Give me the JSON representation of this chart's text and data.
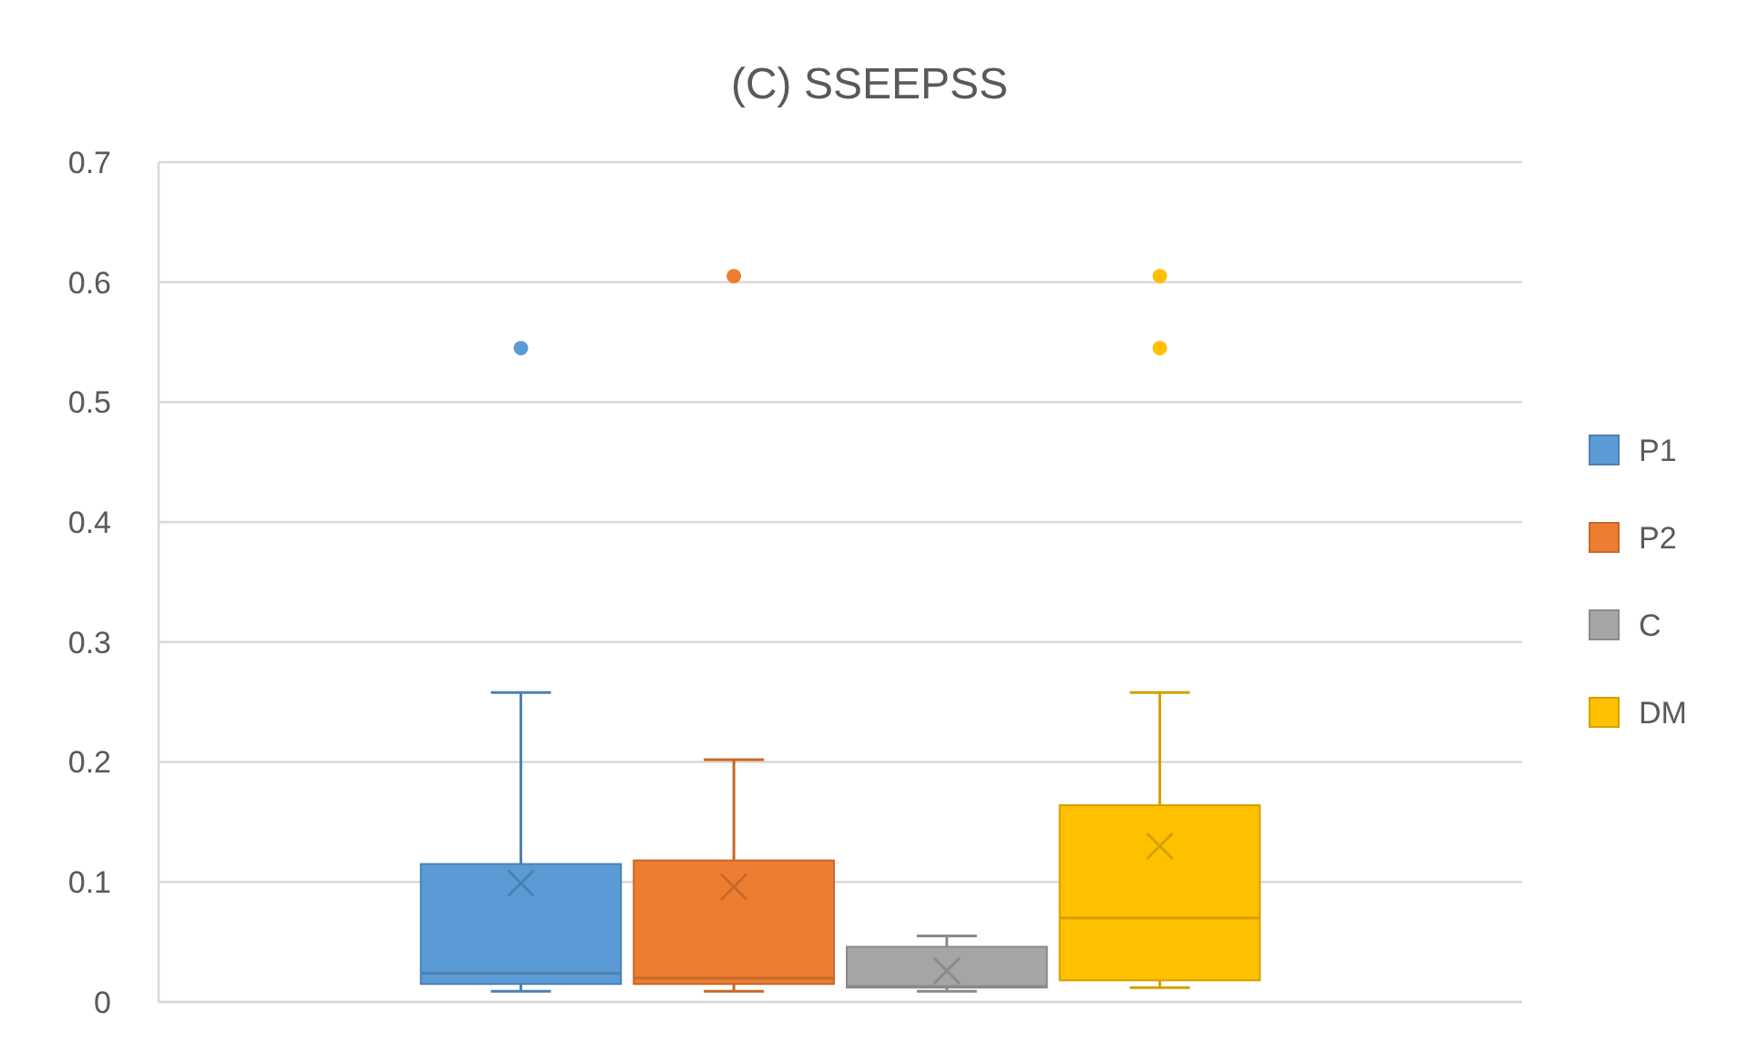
{
  "chart_data": {
    "type": "box",
    "title": "(C) SSEEPSS",
    "categories": [
      null
    ],
    "ylim": [
      0,
      0.7
    ],
    "yticks": [
      0,
      0.1,
      0.2,
      0.3,
      0.4,
      0.5,
      0.6,
      0.7
    ],
    "grid": "y",
    "legend": "right",
    "series": [
      {
        "name": "P1",
        "color": "#5b9bd5",
        "boxes": [
          {
            "low": 0.009,
            "q1": 0.015,
            "median": 0.024,
            "q3": 0.115,
            "high": 0.258,
            "mean": 0.099,
            "outliers": [
              0.545
            ]
          }
        ]
      },
      {
        "name": "P2",
        "color": "#ed7d31",
        "boxes": [
          {
            "low": 0.009,
            "q1": 0.015,
            "median": 0.02,
            "q3": 0.118,
            "high": 0.202,
            "mean": 0.096,
            "outliers": [
              0.605
            ]
          }
        ]
      },
      {
        "name": "C",
        "color": "#a5a5a5",
        "boxes": [
          {
            "low": 0.009,
            "q1": 0.012,
            "median": 0.013,
            "q3": 0.046,
            "high": 0.055,
            "mean": 0.026
          }
        ]
      },
      {
        "name": "DM",
        "color": "#ffc000",
        "boxes": [
          {
            "low": 0.012,
            "q1": 0.018,
            "median": 0.07,
            "q3": 0.164,
            "high": 0.258,
            "mean": 0.13,
            "outliers": [
              0.605,
              0.545
            ]
          }
        ]
      }
    ]
  }
}
